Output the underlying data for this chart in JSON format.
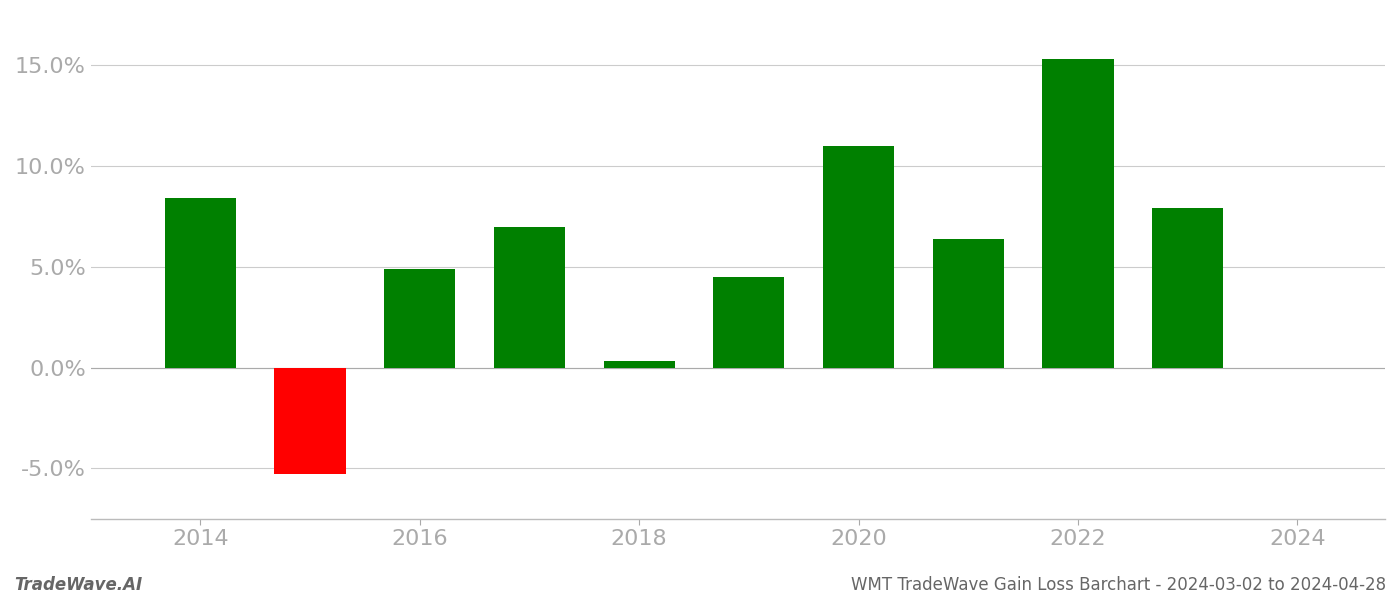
{
  "years": [
    2014,
    2015,
    2016,
    2017,
    2018,
    2019,
    2020,
    2021,
    2022,
    2023
  ],
  "values": [
    0.084,
    -0.053,
    0.049,
    0.07,
    0.003,
    0.045,
    0.11,
    0.064,
    0.153,
    0.079
  ],
  "colors": [
    "#008000",
    "#ff0000",
    "#008000",
    "#008000",
    "#008000",
    "#008000",
    "#008000",
    "#008000",
    "#008000",
    "#008000"
  ],
  "bar_width": 0.65,
  "ylim": [
    -0.075,
    0.175
  ],
  "yticks": [
    -0.05,
    0.0,
    0.05,
    0.1,
    0.15
  ],
  "xticks": [
    2014,
    2016,
    2018,
    2020,
    2022,
    2024
  ],
  "xlim": [
    2013.0,
    2024.8
  ],
  "footer_left": "TradeWave.AI",
  "footer_right": "WMT TradeWave Gain Loss Barchart - 2024-03-02 to 2024-04-28",
  "footer_fontsize": 12,
  "bg_color": "#ffffff",
  "grid_color": "#cccccc",
  "tick_color": "#aaaaaa",
  "tick_fontsize": 16
}
